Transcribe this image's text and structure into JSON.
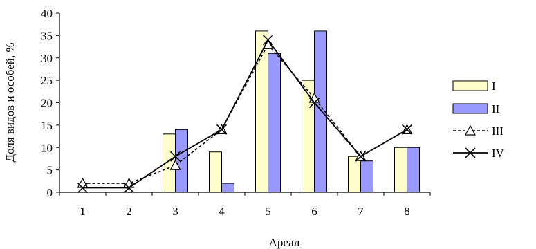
{
  "chart_data": {
    "type": "bar",
    "xlabel": "Ареал",
    "ylabel": "Доля видов и особей, %",
    "categories": [
      "1",
      "2",
      "3",
      "4",
      "5",
      "6",
      "7",
      "8"
    ],
    "ylim": [
      0,
      40
    ],
    "yticks": [
      "0",
      "5",
      "10",
      "15",
      "20",
      "25",
      "30",
      "35",
      "40"
    ],
    "grid": false,
    "legend_position": "right",
    "series": [
      {
        "name": "I",
        "kind": "bar",
        "color": "#FFFFCC",
        "values": [
          0,
          0,
          13,
          9,
          36,
          25,
          8,
          10
        ]
      },
      {
        "name": "II",
        "kind": "bar",
        "color": "#9999FF",
        "values": [
          0,
          0,
          14,
          2,
          31,
          36,
          7,
          10
        ]
      },
      {
        "name": "III",
        "kind": "line",
        "style": "dashed",
        "marker": "triangle",
        "values": [
          2,
          2,
          6,
          14,
          33,
          21,
          8,
          14
        ]
      },
      {
        "name": "IV",
        "kind": "line",
        "style": "solid",
        "marker": "x",
        "values": [
          1,
          1,
          8,
          14,
          34,
          20,
          8,
          14
        ]
      }
    ]
  }
}
